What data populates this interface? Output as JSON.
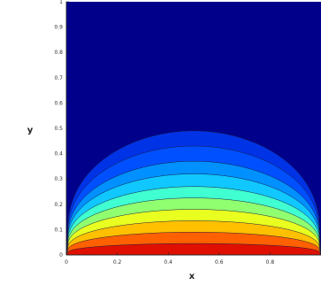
{
  "chart_data": {
    "type": "heatmap",
    "subtype": "filled-contour",
    "title": "",
    "xlabel": "x",
    "ylabel": "y",
    "xlim": [
      0,
      1
    ],
    "ylim": [
      0,
      1
    ],
    "x_ticks": [
      "0",
      "0.2",
      "0.4",
      "0.6",
      "0.8"
    ],
    "y_ticks": [
      "0",
      "0.1",
      "0.2",
      "0.3",
      "0.4",
      "0.5",
      "0.6",
      "0.7",
      "0.8",
      "0.9",
      "1"
    ],
    "grid": false,
    "legend": "none",
    "colormap": "jet",
    "contour_levels": [
      {
        "level": 1,
        "height": 0.49,
        "color": "#0033e6"
      },
      {
        "level": 2,
        "height": 0.43,
        "color": "#0050ff"
      },
      {
        "level": 3,
        "height": 0.37,
        "color": "#0090ff"
      },
      {
        "level": 4,
        "height": 0.32,
        "color": "#10c8ff"
      },
      {
        "level": 5,
        "height": 0.27,
        "color": "#40ffd0"
      },
      {
        "level": 6,
        "height": 0.225,
        "color": "#90ff70"
      },
      {
        "level": 7,
        "height": 0.18,
        "color": "#e8ff20"
      },
      {
        "level": 8,
        "height": 0.135,
        "color": "#ffc000"
      },
      {
        "level": 9,
        "height": 0.09,
        "color": "#ff6000"
      },
      {
        "level": 10,
        "height": 0.045,
        "color": "#e01000"
      }
    ],
    "background_color": "#00008b"
  }
}
